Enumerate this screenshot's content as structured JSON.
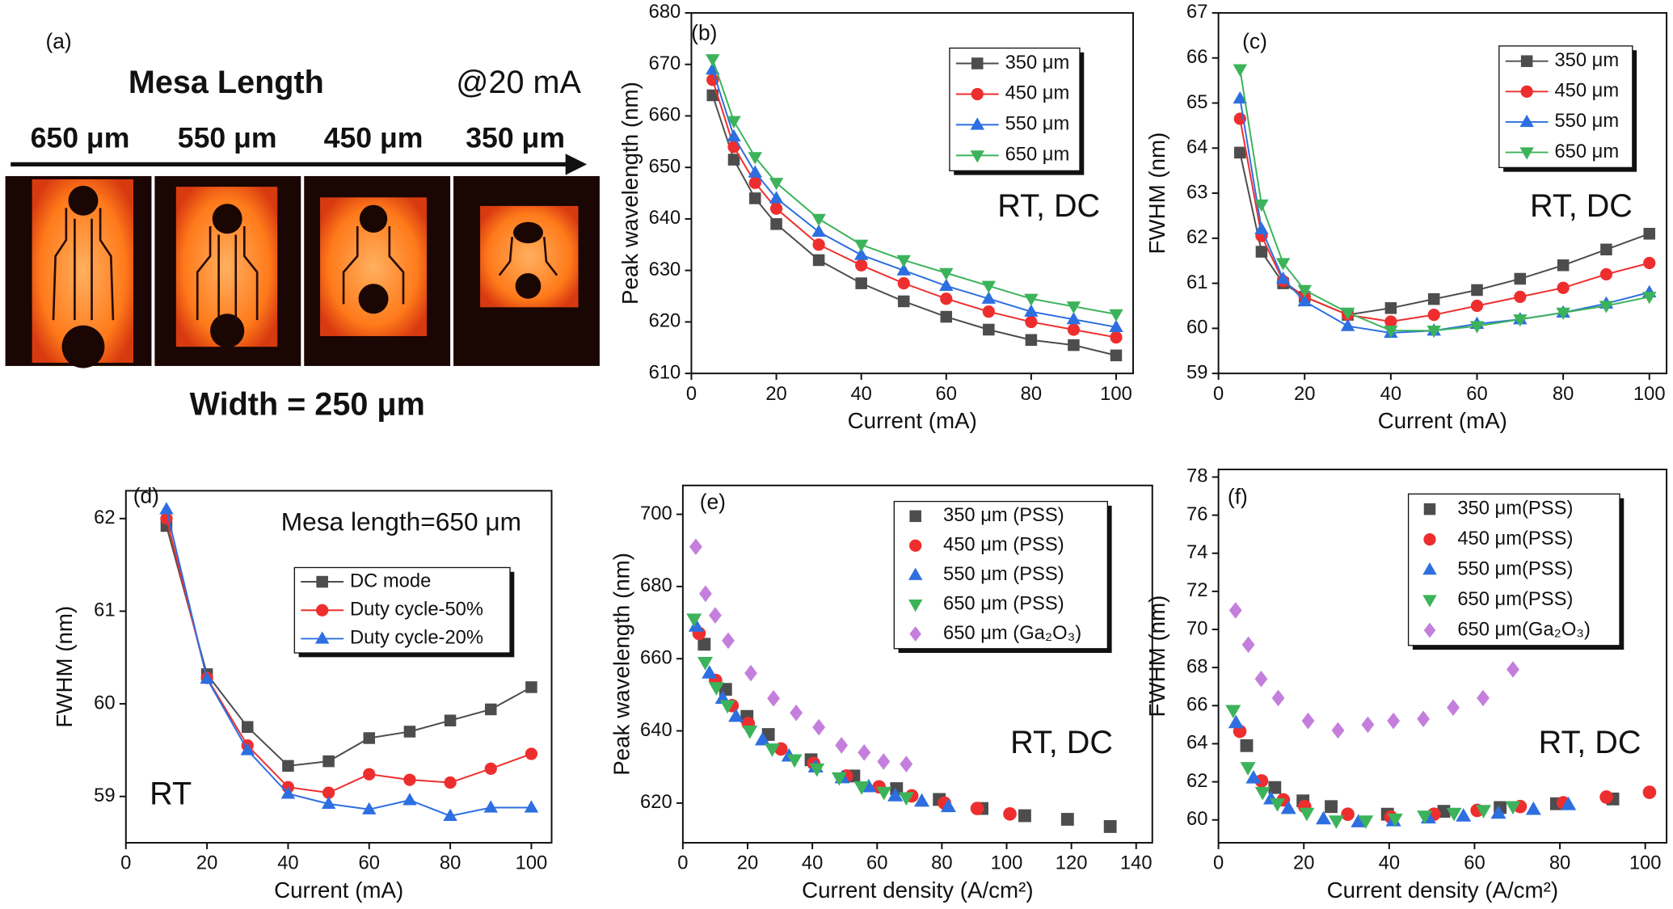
{
  "photo_panel": {
    "label": "(a)",
    "title": "Mesa Length",
    "condition": "@20 mA",
    "mesa_lengths": [
      "650 μm",
      "550 μm",
      "450 μm",
      "350 μm"
    ],
    "width_label": "Width = 250 μm"
  },
  "chart_data": [
    {
      "type": "line",
      "panel_label": "(b)",
      "x_label": "Current (mA)",
      "y_label": "Peak wavelength (nm)",
      "x": [
        5,
        10,
        15,
        20,
        30,
        40,
        50,
        60,
        70,
        80,
        90,
        100
      ],
      "xlim": [
        0,
        104
      ],
      "xticks": [
        0,
        20,
        40,
        60,
        80,
        100
      ],
      "ylim": [
        610,
        680
      ],
      "yticks": [
        610,
        620,
        630,
        640,
        650,
        660,
        670,
        680
      ],
      "annotations": [
        "RT, DC"
      ],
      "series": [
        {
          "name": "350 μm",
          "color": "#4d4d4d",
          "marker": "square",
          "values": [
            664,
            651.5,
            644,
            639,
            632,
            627.5,
            624,
            621,
            618.5,
            616.5,
            615.5,
            613.5
          ]
        },
        {
          "name": "450 μm",
          "color": "#ee2e2e",
          "marker": "circle",
          "values": [
            667,
            654,
            647,
            642,
            635,
            631,
            627.5,
            624.5,
            622,
            620,
            618.5,
            617
          ]
        },
        {
          "name": "550 μm",
          "color": "#2d6fe0",
          "marker": "triangle-up",
          "values": [
            669,
            656,
            649,
            644,
            637.5,
            633,
            630,
            627,
            624.5,
            622,
            620.5,
            619
          ]
        },
        {
          "name": "650 μm",
          "color": "#3cb35a",
          "marker": "triangle-down",
          "values": [
            671,
            659,
            652,
            647,
            640,
            635,
            632,
            629.5,
            627,
            624.5,
            623,
            621.5
          ]
        }
      ]
    },
    {
      "type": "line",
      "panel_label": "(c)",
      "x_label": "Current (mA)",
      "y_label": "FWHM (nm)",
      "x": [
        5,
        10,
        15,
        20,
        30,
        40,
        50,
        60,
        70,
        80,
        90,
        100
      ],
      "xlim": [
        0,
        104
      ],
      "xticks": [
        0,
        20,
        40,
        60,
        80,
        100
      ],
      "ylim": [
        59,
        67
      ],
      "yticks": [
        59,
        60,
        61,
        62,
        63,
        64,
        65,
        66,
        67
      ],
      "annotations": [
        "RT, DC"
      ],
      "series": [
        {
          "name": "350 μm",
          "color": "#4d4d4d",
          "marker": "square",
          "values": [
            63.9,
            61.7,
            61.0,
            60.7,
            60.3,
            60.45,
            60.65,
            60.85,
            61.1,
            61.4,
            61.75,
            62.1
          ]
        },
        {
          "name": "450 μm",
          "color": "#ee2e2e",
          "marker": "circle",
          "values": [
            64.65,
            62.05,
            61.05,
            60.7,
            60.3,
            60.15,
            60.3,
            60.5,
            60.7,
            60.9,
            61.2,
            61.45
          ]
        },
        {
          "name": "550 μm",
          "color": "#2d6fe0",
          "marker": "triangle-up",
          "values": [
            65.1,
            62.2,
            61.1,
            60.6,
            60.05,
            59.9,
            59.95,
            60.1,
            60.2,
            60.35,
            60.55,
            60.8
          ]
        },
        {
          "name": "650 μm",
          "color": "#3cb35a",
          "marker": "triangle-down",
          "values": [
            65.75,
            62.75,
            61.45,
            60.85,
            60.35,
            59.95,
            59.95,
            60.05,
            60.2,
            60.35,
            60.5,
            60.7
          ]
        }
      ]
    },
    {
      "type": "line",
      "panel_label": "(d)",
      "x_label": "Current (mA)",
      "y_label": "FWHM (nm)",
      "x": [
        10,
        20,
        30,
        40,
        50,
        60,
        70,
        80,
        90,
        100
      ],
      "xlim": [
        0,
        105
      ],
      "xticks": [
        0,
        20,
        40,
        60,
        80,
        100
      ],
      "ylim": [
        58.5,
        62.3
      ],
      "yticks": [
        59,
        60,
        61,
        62
      ],
      "annotations": [
        "Mesa length=650 μm",
        "RT"
      ],
      "series": [
        {
          "name": "DC mode",
          "color": "#4d4d4d",
          "marker": "square",
          "values": [
            61.92,
            60.32,
            59.75,
            59.33,
            59.38,
            59.63,
            59.7,
            59.82,
            59.94,
            60.18
          ]
        },
        {
          "name": "Duty cycle-50%",
          "color": "#ee2e2e",
          "marker": "circle",
          "values": [
            62.0,
            60.28,
            59.55,
            59.1,
            59.04,
            59.24,
            59.18,
            59.15,
            59.3,
            59.46
          ]
        },
        {
          "name": "Duty cycle-20%",
          "color": "#2d6fe0",
          "marker": "triangle-up",
          "values": [
            62.1,
            60.27,
            59.5,
            59.03,
            58.92,
            58.86,
            58.96,
            58.79,
            58.88,
            58.88
          ]
        }
      ]
    },
    {
      "type": "scatter",
      "panel_label": "(e)",
      "x_label": "Current density (A/cm²)",
      "y_label": "Peak wavelength (nm)",
      "xlim": [
        0,
        145
      ],
      "xticks": [
        0,
        20,
        40,
        60,
        80,
        100,
        120,
        140
      ],
      "ylim": [
        609,
        708
      ],
      "yticks": [
        620,
        640,
        660,
        680,
        700
      ],
      "annotations": [
        "RT, DC"
      ],
      "series": [
        {
          "name": "350 μm (PSS)",
          "color": "#4d4d4d",
          "marker": "square",
          "x": [
            6.6,
            13.2,
            19.8,
            26.4,
            39.6,
            52.8,
            66,
            79.2,
            92.4,
            105.6,
            118.8,
            132
          ],
          "values": [
            664,
            651.5,
            644,
            639,
            632,
            627.5,
            624,
            621,
            618.5,
            616.5,
            615.5,
            613.5
          ]
        },
        {
          "name": "450 μm (PSS)",
          "color": "#ee2e2e",
          "marker": "circle",
          "x": [
            5,
            10.1,
            15.2,
            20.2,
            30.3,
            40.4,
            50.5,
            60.6,
            70.7,
            80.8,
            90.9,
            101
          ],
          "values": [
            667,
            654,
            647,
            642,
            635,
            631,
            627.5,
            624.5,
            622,
            620,
            618.5,
            617
          ]
        },
        {
          "name": "550 μm (PSS)",
          "color": "#2d6fe0",
          "marker": "triangle-up",
          "x": [
            4.1,
            8.2,
            12.3,
            16.4,
            24.6,
            32.8,
            41,
            49.2,
            57.4,
            65.6,
            73.8,
            82
          ],
          "values": [
            669,
            656,
            649,
            644,
            637.5,
            633,
            630,
            627,
            624.5,
            622,
            620.5,
            619
          ]
        },
        {
          "name": "650 μm (PSS)",
          "color": "#3cb35a",
          "marker": "triangle-down",
          "x": [
            3.45,
            6.9,
            10.35,
            13.8,
            20.7,
            27.6,
            34.5,
            41.4,
            48.3,
            55.2,
            62.1,
            69
          ],
          "values": [
            671,
            659,
            652,
            647,
            640,
            635,
            632,
            629.5,
            627,
            624.5,
            623,
            621.5
          ]
        },
        {
          "name": "650 μm (Ga₂O₃)",
          "color": "#c47fdc",
          "marker": "diamond",
          "x": [
            4,
            7,
            10,
            14,
            21,
            28,
            35,
            42,
            49,
            56,
            62,
            69
          ],
          "values": [
            691,
            678,
            672,
            665,
            656,
            649,
            645,
            641,
            636,
            634,
            631.5,
            630.8
          ]
        }
      ]
    },
    {
      "type": "scatter",
      "panel_label": "(f)",
      "x_label": "Current density (A/cm²)",
      "y_label": "FWHM (nm)",
      "xlim": [
        0,
        105
      ],
      "xticks": [
        0,
        20,
        40,
        60,
        80,
        100
      ],
      "ylim": [
        58.8,
        78.4
      ],
      "yticks": [
        60,
        62,
        64,
        66,
        68,
        70,
        72,
        74,
        76,
        78
      ],
      "annotations": [
        "RT, DC"
      ],
      "series": [
        {
          "name": "350 μm(PSS)",
          "color": "#4d4d4d",
          "marker": "square",
          "x": [
            6.6,
            13.2,
            19.8,
            26.4,
            39.6,
            52.8,
            66,
            79.2,
            92.4
          ],
          "values": [
            63.9,
            61.7,
            61.0,
            60.7,
            60.3,
            60.45,
            60.65,
            60.85,
            61.1
          ]
        },
        {
          "name": "450 μm(PSS)",
          "color": "#ee2e2e",
          "marker": "circle",
          "x": [
            5,
            10.1,
            15.2,
            20.2,
            30.3,
            40.4,
            50.5,
            60.6,
            70.7,
            80.8,
            90.9,
            101
          ],
          "values": [
            64.65,
            62.05,
            61.05,
            60.7,
            60.3,
            60.15,
            60.3,
            60.5,
            60.7,
            60.9,
            61.2,
            61.45
          ]
        },
        {
          "name": "550 μm(PSS)",
          "color": "#2d6fe0",
          "marker": "triangle-up",
          "x": [
            4.1,
            8.2,
            12.3,
            16.4,
            24.6,
            32.8,
            41,
            49.2,
            57.4,
            65.6,
            73.8,
            82
          ],
          "values": [
            65.1,
            62.2,
            61.1,
            60.6,
            60.05,
            59.9,
            59.95,
            60.1,
            60.2,
            60.35,
            60.55,
            60.8
          ]
        },
        {
          "name": "650 μm(PSS)",
          "color": "#3cb35a",
          "marker": "triangle-down",
          "x": [
            3.45,
            6.9,
            10.35,
            13.8,
            20.7,
            27.6,
            34.5,
            41.4,
            48.3,
            55.2,
            62.1,
            69
          ],
          "values": [
            65.75,
            62.75,
            61.45,
            60.85,
            60.35,
            59.95,
            59.95,
            60.05,
            60.2,
            60.35,
            60.5,
            60.7
          ]
        },
        {
          "name": "650 μm(Ga₂O₃)",
          "color": "#c47fdc",
          "marker": "diamond",
          "x": [
            4,
            7,
            10,
            14,
            21,
            28,
            35,
            41,
            48,
            55,
            62,
            69
          ],
          "values": [
            71.0,
            69.2,
            67.4,
            66.4,
            65.2,
            64.7,
            65.0,
            65.2,
            65.3,
            65.9,
            66.4,
            67.9
          ]
        }
      ]
    }
  ]
}
